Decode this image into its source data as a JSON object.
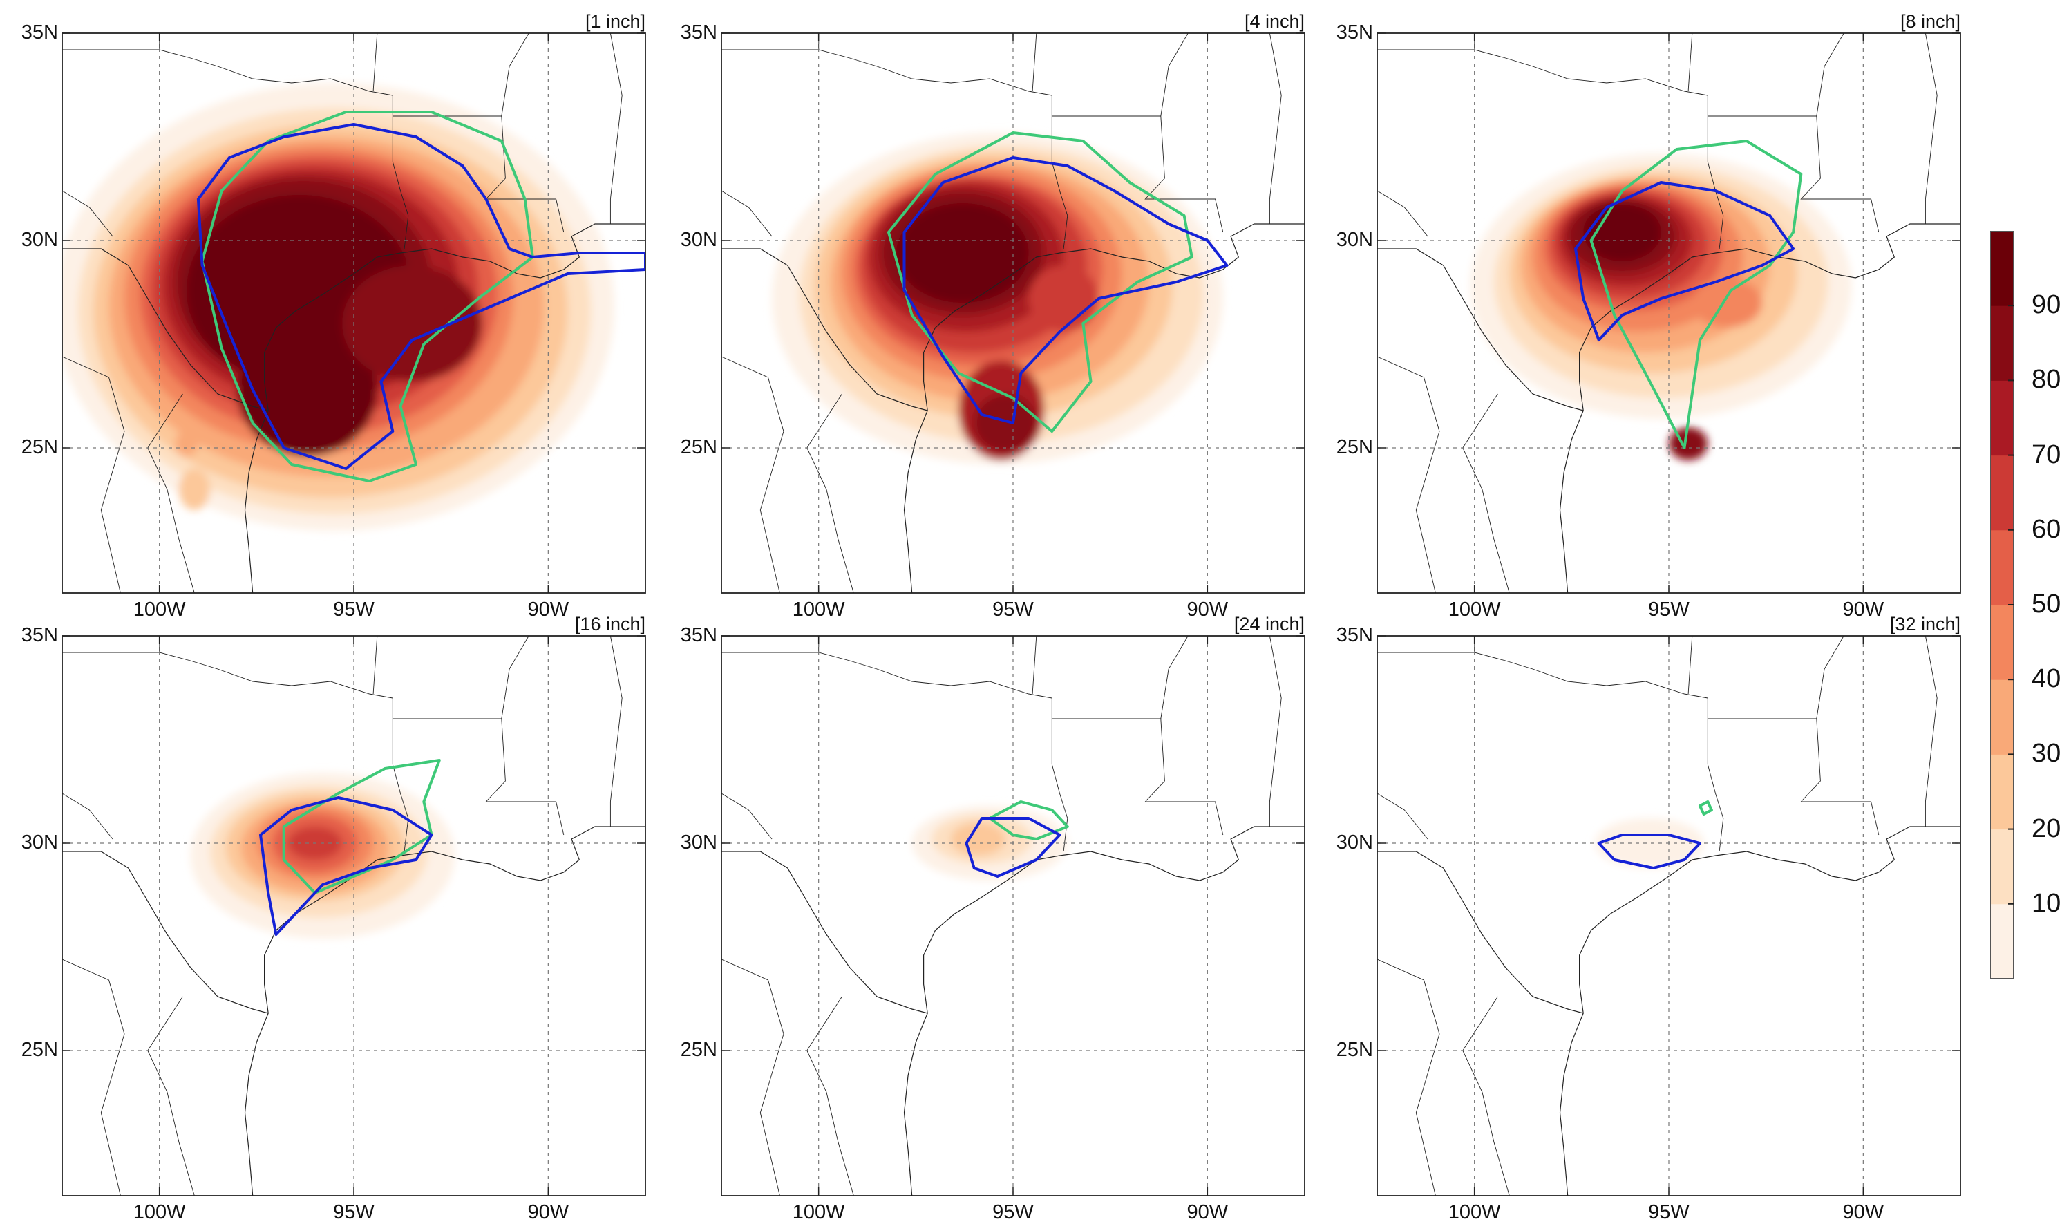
{
  "figure": {
    "panels": [
      {
        "title": "[1 inch]"
      },
      {
        "title": "[4 inch]"
      },
      {
        "title": "[8 inch]"
      },
      {
        "title": "[16 inch]"
      },
      {
        "title": "[24 inch]"
      },
      {
        "title": "[32 inch]"
      }
    ],
    "lat_labels": [
      "35N",
      "30N",
      "25N"
    ],
    "lon_labels": [
      "100W",
      "95W",
      "90W"
    ],
    "extent": {
      "lon_min": -102.5,
      "lon_max": -87.5,
      "lat_min": 21.5,
      "lat_max": 35.0
    }
  },
  "colorbar": {
    "ticks": [
      "10",
      "20",
      "30",
      "40",
      "50",
      "60",
      "70",
      "80",
      "90"
    ],
    "colors": [
      "#fdf1e6",
      "#fde0c2",
      "#fcc89a",
      "#f9a978",
      "#f3865d",
      "#e45f48",
      "#cc3a35",
      "#aa1a24",
      "#870b14",
      "#6b0008"
    ]
  },
  "chart_data": [
    {
      "type": "map",
      "panel": "[1 inch]",
      "shaded_extent": "large, centered near 96W 28N, max > 90%",
      "contours": [
        "blue",
        "green"
      ]
    },
    {
      "type": "map",
      "panel": "[4 inch]",
      "shaded_extent": "medium, centered near 96W 29N",
      "contours": [
        "blue",
        "green"
      ]
    },
    {
      "type": "map",
      "panel": "[8 inch]",
      "shaded_extent": "smaller, centered near 96W 30N",
      "contours": [
        "blue",
        "green"
      ]
    },
    {
      "type": "map",
      "panel": "[16 inch]",
      "shaded_extent": "small, near 96W 30N, max ~70%",
      "contours": [
        "blue",
        "green"
      ]
    },
    {
      "type": "map",
      "panel": "[24 inch]",
      "shaded_extent": "faint, near 95.5W 30N",
      "contours": [
        "blue",
        "green"
      ]
    },
    {
      "type": "map",
      "panel": "[32 inch]",
      "shaded_extent": "very faint, near 95.5W 30N",
      "contours": [
        "blue",
        "green"
      ]
    }
  ]
}
